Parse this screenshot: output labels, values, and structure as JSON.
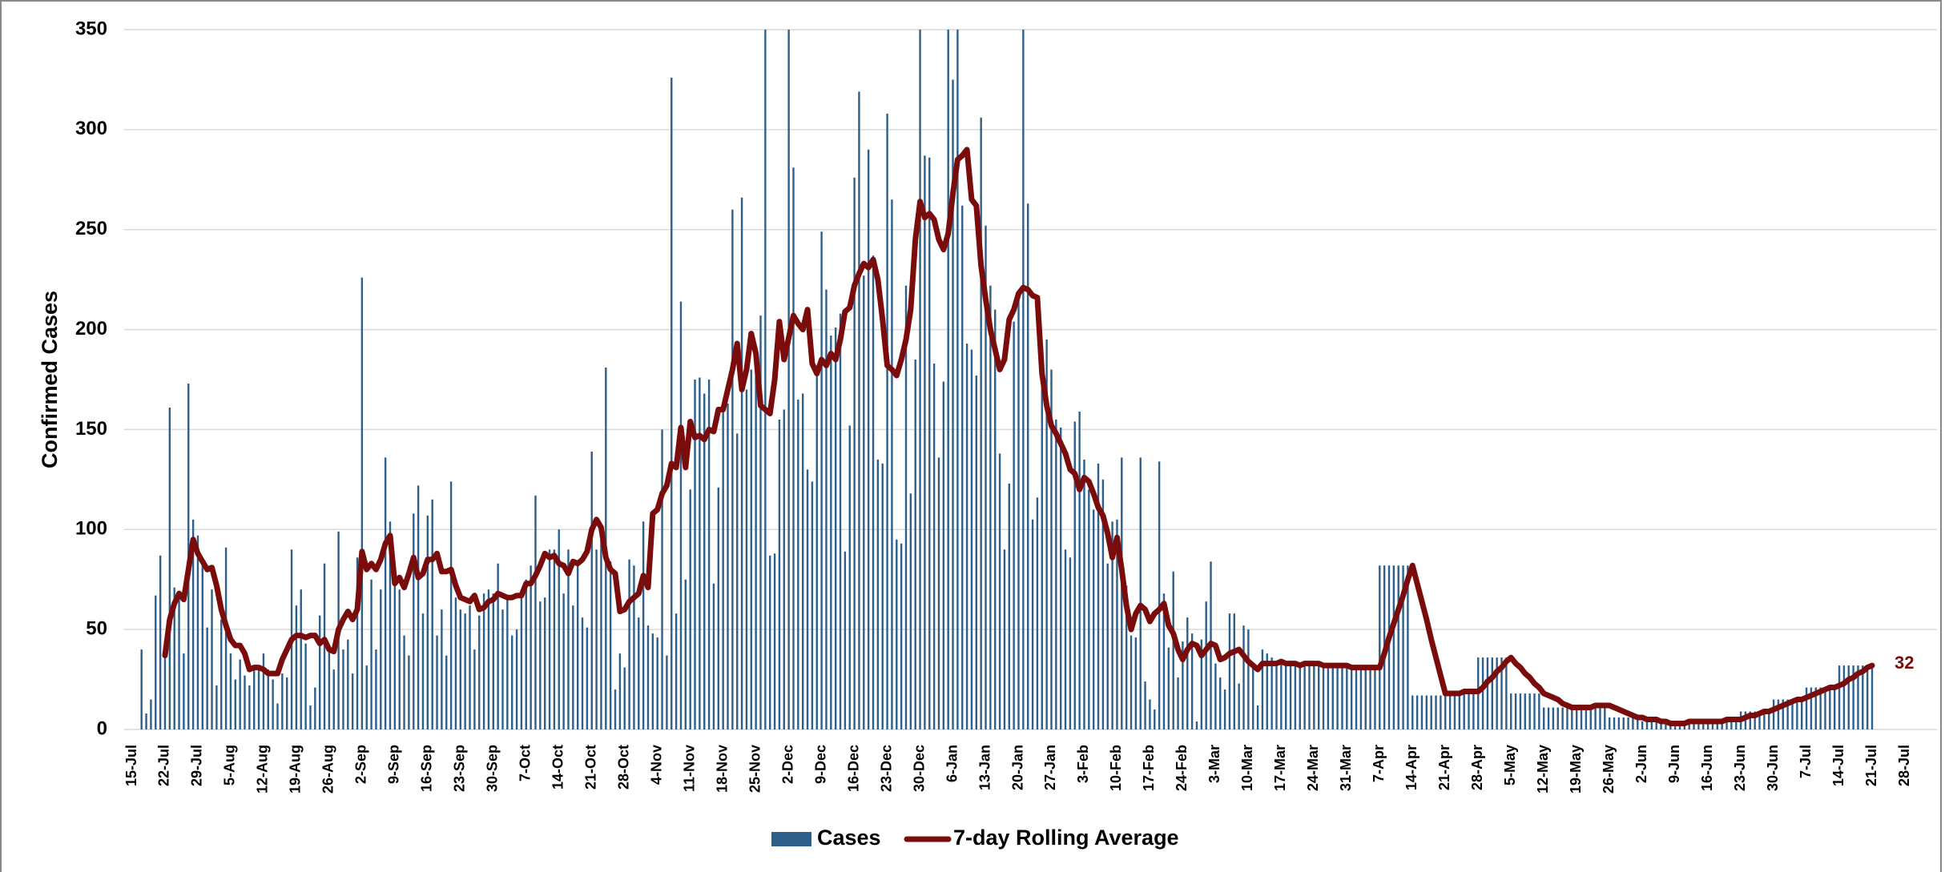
{
  "chart_data": {
    "type": "bar-line",
    "y_label": "Confirmed Cases",
    "ylim": [
      0,
      350
    ],
    "yticks": [
      0,
      50,
      100,
      150,
      200,
      250,
      300,
      350
    ],
    "grid": true,
    "legend": "bottom",
    "categories": [
      "15-Jul",
      null,
      null,
      null,
      null,
      null,
      null,
      "22-Jul",
      null,
      null,
      null,
      null,
      null,
      null,
      "29-Jul",
      null,
      null,
      null,
      null,
      null,
      null,
      "5-Aug",
      null,
      null,
      null,
      null,
      null,
      null,
      "12-Aug",
      null,
      null,
      null,
      null,
      null,
      null,
      "19-Aug",
      null,
      null,
      null,
      null,
      null,
      null,
      "26-Aug",
      null,
      null,
      null,
      null,
      null,
      null,
      "2-Sep",
      null,
      null,
      null,
      null,
      null,
      null,
      "9-Sep",
      null,
      null,
      null,
      null,
      null,
      null,
      "16-Sep",
      null,
      null,
      null,
      null,
      null,
      null,
      "23-Sep",
      null,
      null,
      null,
      null,
      null,
      null,
      "30-Sep",
      null,
      null,
      null,
      null,
      null,
      null,
      "7-Oct",
      null,
      null,
      null,
      null,
      null,
      null,
      "14-Oct",
      null,
      null,
      null,
      null,
      null,
      null,
      "21-Oct",
      null,
      null,
      null,
      null,
      null,
      null,
      "28-Oct",
      null,
      null,
      null,
      null,
      null,
      null,
      "4-Nov",
      null,
      null,
      null,
      null,
      null,
      null,
      "11-Nov",
      null,
      null,
      null,
      null,
      null,
      null,
      "18-Nov",
      null,
      null,
      null,
      null,
      null,
      null,
      "25-Nov",
      null,
      null,
      null,
      null,
      null,
      null,
      "2-Dec",
      null,
      null,
      null,
      null,
      null,
      null,
      "9-Dec",
      null,
      null,
      null,
      null,
      null,
      null,
      "16-Dec",
      null,
      null,
      null,
      null,
      null,
      null,
      "23-Dec",
      null,
      null,
      null,
      null,
      null,
      null,
      "30-Dec",
      null,
      null,
      null,
      null,
      null,
      null,
      "6-Jan",
      null,
      null,
      null,
      null,
      null,
      null,
      "13-Jan",
      null,
      null,
      null,
      null,
      null,
      null,
      "20-Jan",
      null,
      null,
      null,
      null,
      null,
      null,
      "27-Jan",
      null,
      null,
      null,
      null,
      null,
      null,
      "3-Feb",
      null,
      null,
      null,
      null,
      null,
      null,
      "10-Feb",
      null,
      null,
      null,
      null,
      null,
      null,
      "17-Feb",
      null,
      null,
      null,
      null,
      null,
      null,
      "24-Feb",
      null,
      null,
      null,
      null,
      null,
      null,
      "3-Mar",
      null,
      null,
      null,
      null,
      null,
      null,
      "10-Mar",
      null,
      null,
      null,
      null,
      null,
      null,
      "17-Mar",
      null,
      null,
      null,
      null,
      null,
      null,
      "24-Mar",
      null,
      null,
      null,
      null,
      null,
      null,
      "31-Mar",
      null,
      null,
      null,
      null,
      null,
      null,
      "7-Apr",
      null,
      null,
      null,
      null,
      null,
      null,
      "14-Apr",
      null,
      null,
      null,
      null,
      null,
      null,
      "21-Apr",
      null,
      null,
      null,
      null,
      null,
      null,
      "28-Apr",
      null,
      null,
      null,
      null,
      null,
      null,
      "5-May",
      null,
      null,
      null,
      null,
      null,
      null,
      "12-May",
      null,
      null,
      null,
      null,
      null,
      null,
      "19-May",
      null,
      null,
      null,
      null,
      null,
      null,
      "26-May",
      null,
      null,
      null,
      null,
      null,
      null,
      "2-Jun",
      null,
      null,
      null,
      null,
      null,
      null,
      "9-Jun",
      null,
      null,
      null,
      null,
      null,
      null,
      "16-Jun",
      null,
      null,
      null,
      null,
      null,
      null,
      "23-Jun",
      null,
      null,
      null,
      null,
      null,
      null,
      "30-Jun",
      null,
      null,
      null,
      null,
      null,
      null,
      "7-Jul",
      null,
      null,
      null,
      null,
      null,
      null,
      "14-Jul",
      null,
      null,
      null,
      null,
      null,
      null,
      "21-Jul",
      null,
      null,
      null,
      null,
      null,
      null,
      "28-Jul"
    ],
    "series": [
      {
        "name": "Cases",
        "color": "#2e5f8a",
        "kind": "bar",
        "values": [
          null,
          null,
          40,
          8,
          15,
          67,
          87,
          38,
          161,
          71,
          68,
          38,
          173,
          105,
          97,
          82,
          51,
          70,
          22,
          55,
          91,
          38,
          25,
          35,
          27,
          22,
          30,
          30,
          38,
          30,
          25,
          13,
          28,
          26,
          90,
          62,
          70,
          43,
          12,
          21,
          57,
          83,
          40,
          30,
          99,
          40,
          45,
          28,
          86,
          226,
          32,
          75,
          40,
          70,
          136,
          104,
          78,
          70,
          47,
          37,
          108,
          122,
          58,
          107,
          115,
          47,
          60,
          37,
          124,
          66,
          60,
          58,
          62,
          40,
          57,
          68,
          70,
          68,
          83,
          60,
          67,
          47,
          50,
          70,
          75,
          82,
          117,
          64,
          66,
          90,
          90,
          100,
          68,
          90,
          62,
          83,
          56,
          51,
          139,
          90,
          95,
          181,
          84,
          20,
          38,
          31,
          85,
          82,
          56,
          104,
          52,
          48,
          46,
          150,
          37,
          326,
          58,
          214,
          75,
          120,
          175,
          176,
          168,
          175,
          73,
          121,
          160,
          163,
          260,
          148,
          266,
          170,
          180,
          190,
          207,
          350,
          87,
          88,
          155,
          160,
          350,
          281,
          165,
          168,
          130,
          124,
          180,
          249,
          220,
          197,
          201,
          208,
          89,
          152,
          276,
          319,
          227,
          290,
          237,
          135,
          133,
          308,
          265,
          95,
          93,
          222,
          118,
          185,
          350,
          287,
          286,
          183,
          136,
          174,
          350,
          325,
          350,
          262,
          193,
          190,
          177,
          306,
          252,
          222,
          210,
          138,
          90,
          123,
          204,
          218,
          350,
          263,
          105,
          116,
          172,
          195,
          180,
          155,
          151,
          90,
          86,
          154,
          159,
          135,
          120,
          110,
          133,
          125,
          83,
          104,
          105,
          136,
          72,
          47,
          46,
          136,
          24,
          15,
          10,
          134,
          68,
          41,
          79,
          26,
          44,
          56,
          48,
          4,
          45,
          64,
          84,
          33,
          26,
          20,
          58,
          58,
          23,
          52,
          50,
          33,
          12,
          40,
          38,
          36,
          34,
          34,
          34,
          33,
          33,
          33,
          33,
          33,
          33,
          32,
          32,
          32,
          32,
          32,
          32,
          31,
          31,
          31,
          31,
          31,
          31,
          31,
          82,
          82,
          82,
          82,
          82,
          82,
          82,
          17,
          17,
          17,
          17,
          17,
          17,
          17,
          18,
          18,
          18,
          18,
          18,
          18,
          18,
          36,
          36,
          36,
          36,
          36,
          36,
          36,
          18,
          18,
          18,
          18,
          18,
          18,
          18,
          11,
          11,
          11,
          11,
          11,
          11,
          11,
          11,
          11,
          11,
          11,
          11,
          11,
          11,
          6,
          6,
          6,
          6,
          6,
          6,
          6,
          4,
          4,
          4,
          4,
          4,
          4,
          4,
          3,
          3,
          3,
          3,
          3,
          3,
          3,
          4,
          4,
          4,
          4,
          4,
          4,
          4,
          9,
          9,
          9,
          9,
          9,
          9,
          9,
          15,
          15,
          15,
          15,
          15,
          15,
          15,
          21,
          21,
          21,
          21,
          21,
          21,
          21,
          32,
          32,
          32,
          32,
          32,
          32,
          32,
          32,
          null,
          null,
          null,
          null,
          null,
          null,
          null
        ]
      },
      {
        "name": "7-day Rolling Average",
        "color": "#7b0c0c",
        "kind": "line",
        "values": [
          null,
          null,
          null,
          null,
          null,
          null,
          null,
          37,
          55,
          63,
          68,
          65,
          80,
          95,
          88,
          84,
          80,
          81,
          72,
          60,
          52,
          45,
          42,
          42,
          38,
          30,
          31,
          31,
          30,
          28,
          28,
          28,
          35,
          40,
          45,
          47,
          47,
          46,
          47,
          47,
          43,
          45,
          40,
          39,
          50,
          55,
          59,
          55,
          60,
          89,
          80,
          83,
          80,
          85,
          93,
          97,
          73,
          76,
          71,
          78,
          86,
          76,
          78,
          85,
          85,
          88,
          79,
          79,
          80,
          72,
          66,
          65,
          64,
          67,
          60,
          61,
          64,
          65,
          68,
          67,
          66,
          66,
          67,
          67,
          73,
          73,
          77,
          82,
          88,
          86,
          87,
          83,
          82,
          78,
          84,
          83,
          85,
          89,
          100,
          105,
          101,
          86,
          80,
          78,
          59,
          60,
          64,
          66,
          68,
          77,
          71,
          108,
          110,
          118,
          122,
          133,
          131,
          151,
          131,
          154,
          146,
          147,
          145,
          150,
          149,
          160,
          160,
          170,
          180,
          193,
          170,
          180,
          198,
          188,
          162,
          160,
          158,
          175,
          204,
          185,
          196,
          207,
          203,
          200,
          210,
          183,
          178,
          185,
          182,
          188,
          185,
          195,
          209,
          211,
          222,
          228,
          233,
          231,
          235,
          225,
          205,
          182,
          180,
          177,
          185,
          195,
          210,
          245,
          264,
          256,
          258,
          255,
          245,
          240,
          248,
          268,
          285,
          287,
          290,
          265,
          262,
          232,
          215,
          200,
          190,
          180,
          185,
          205,
          210,
          218,
          221,
          220,
          217,
          216,
          178,
          162,
          152,
          148,
          143,
          138,
          130,
          128,
          120,
          126,
          124,
          118,
          111,
          107,
          98,
          86,
          96,
          80,
          62,
          50,
          58,
          62,
          60,
          54,
          58,
          60,
          63,
          52,
          48,
          40,
          35,
          40,
          43,
          42,
          37,
          40,
          43,
          42,
          35,
          36,
          38,
          39,
          40,
          37,
          34,
          32,
          30,
          33,
          33,
          33,
          33,
          34,
          33,
          33,
          33,
          32,
          33,
          33,
          33,
          33,
          32,
          32,
          32,
          32,
          32,
          32,
          31,
          31,
          31,
          31,
          31,
          31,
          31,
          38,
          46,
          53,
          60,
          67,
          75,
          82,
          73,
          64,
          55,
          45,
          36,
          27,
          18,
          18,
          18,
          18,
          19,
          19,
          19,
          19,
          21,
          24,
          26,
          29,
          31,
          34,
          36,
          33,
          31,
          28,
          26,
          23,
          21,
          18,
          17,
          16,
          15,
          13,
          12,
          11,
          11,
          11,
          11,
          11,
          12,
          12,
          12,
          12,
          11,
          10,
          9,
          8,
          7,
          6,
          6,
          5,
          5,
          5,
          4,
          4,
          3,
          3,
          3,
          3,
          4,
          4,
          4,
          4,
          4,
          4,
          4,
          4,
          5,
          5,
          5,
          5,
          6,
          7,
          7,
          8,
          9,
          9,
          10,
          11,
          12,
          13,
          14,
          15,
          15,
          16,
          17,
          18,
          19,
          20,
          21,
          21,
          22,
          23,
          25,
          26,
          28,
          29,
          31,
          32,
          null,
          null,
          null,
          null,
          null,
          null,
          null
        ]
      }
    ]
  }
}
